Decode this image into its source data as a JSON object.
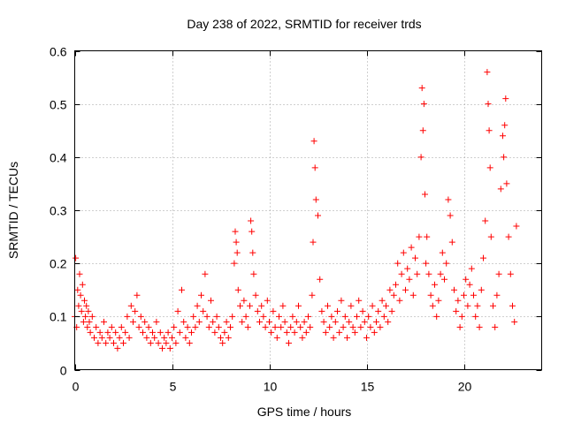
{
  "chart_data": {
    "type": "scatter",
    "title": "Day 238 of 2022, SRMTID for receiver trds",
    "xlabel": "GPS time / hours",
    "ylabel": "SRMTID / TECUs",
    "xlim": [
      0,
      24
    ],
    "ylim": [
      0,
      0.6
    ],
    "xticks": [
      0,
      5,
      10,
      15,
      20
    ],
    "xtick_labels": [
      "0",
      "5",
      "10",
      "15",
      "20"
    ],
    "yticks": [
      0,
      0.1,
      0.2,
      0.3,
      0.4,
      0.5,
      0.6
    ],
    "ytick_labels": [
      "0",
      "0.1",
      "0.2",
      "0.3",
      "0.4",
      "0.5",
      "0.6"
    ],
    "grid": true,
    "marker": "+",
    "color": "#ff0000",
    "series": [
      {
        "name": "SRMTID",
        "x": [
          0.0,
          0.05,
          0.1,
          0.15,
          0.2,
          0.25,
          0.3,
          0.35,
          0.4,
          0.45,
          0.5,
          0.55,
          0.6,
          0.65,
          0.7,
          0.75,
          0.8,
          0.9,
          1.0,
          1.1,
          1.2,
          1.3,
          1.4,
          1.5,
          1.6,
          1.7,
          1.8,
          1.9,
          2.0,
          2.1,
          2.2,
          2.3,
          2.4,
          2.5,
          2.6,
          2.7,
          2.8,
          2.9,
          3.0,
          3.1,
          3.2,
          3.3,
          3.4,
          3.5,
          3.6,
          3.7,
          3.8,
          3.9,
          4.0,
          4.1,
          4.2,
          4.3,
          4.4,
          4.5,
          4.6,
          4.7,
          4.8,
          4.9,
          5.0,
          5.1,
          5.2,
          5.3,
          5.4,
          5.5,
          5.6,
          5.7,
          5.8,
          5.9,
          6.0,
          6.1,
          6.2,
          6.3,
          6.4,
          6.5,
          6.6,
          6.7,
          6.8,
          6.9,
          7.0,
          7.1,
          7.2,
          7.3,
          7.4,
          7.5,
          7.6,
          7.7,
          7.8,
          7.9,
          8.0,
          8.1,
          8.2,
          8.25,
          8.3,
          8.35,
          8.4,
          8.5,
          8.6,
          8.7,
          8.8,
          8.9,
          9.0,
          9.05,
          9.1,
          9.15,
          9.2,
          9.3,
          9.4,
          9.5,
          9.6,
          9.7,
          9.8,
          9.9,
          10.0,
          10.1,
          10.2,
          10.3,
          10.4,
          10.5,
          10.6,
          10.7,
          10.8,
          10.9,
          11.0,
          11.1,
          11.2,
          11.3,
          11.4,
          11.5,
          11.6,
          11.7,
          11.8,
          11.9,
          12.0,
          12.1,
          12.2,
          12.25,
          12.3,
          12.35,
          12.4,
          12.5,
          12.6,
          12.7,
          12.8,
          12.9,
          13.0,
          13.1,
          13.2,
          13.3,
          13.4,
          13.5,
          13.6,
          13.7,
          13.8,
          13.9,
          14.0,
          14.1,
          14.2,
          14.3,
          14.4,
          14.5,
          14.6,
          14.7,
          14.8,
          14.9,
          15.0,
          15.1,
          15.2,
          15.3,
          15.4,
          15.5,
          15.6,
          15.7,
          15.8,
          15.9,
          16.0,
          16.1,
          16.2,
          16.3,
          16.4,
          16.5,
          16.6,
          16.7,
          16.8,
          16.9,
          17.0,
          17.1,
          17.2,
          17.3,
          17.4,
          17.5,
          17.6,
          17.7,
          17.8,
          17.85,
          17.9,
          17.95,
          18.0,
          18.05,
          18.1,
          18.2,
          18.3,
          18.4,
          18.5,
          18.6,
          18.7,
          18.8,
          18.9,
          19.0,
          19.1,
          19.2,
          19.3,
          19.4,
          19.5,
          19.6,
          19.7,
          19.8,
          19.9,
          20.0,
          20.1,
          20.2,
          20.3,
          20.4,
          20.5,
          20.6,
          20.7,
          20.8,
          20.9,
          21.0,
          21.1,
          21.2,
          21.25,
          21.3,
          21.35,
          21.4,
          21.5,
          21.6,
          21.7,
          21.8,
          21.9,
          22.0,
          22.05,
          22.1,
          22.15,
          22.2,
          22.3,
          22.4,
          22.5,
          22.6,
          22.7
        ],
        "y": [
          0.1,
          0.21,
          0.08,
          0.15,
          0.12,
          0.18,
          0.14,
          0.11,
          0.16,
          0.09,
          0.13,
          0.1,
          0.12,
          0.08,
          0.11,
          0.09,
          0.07,
          0.1,
          0.06,
          0.08,
          0.05,
          0.07,
          0.06,
          0.09,
          0.05,
          0.07,
          0.06,
          0.08,
          0.05,
          0.07,
          0.04,
          0.06,
          0.08,
          0.05,
          0.07,
          0.1,
          0.06,
          0.12,
          0.09,
          0.11,
          0.14,
          0.08,
          0.1,
          0.07,
          0.09,
          0.06,
          0.08,
          0.05,
          0.07,
          0.06,
          0.09,
          0.05,
          0.07,
          0.04,
          0.06,
          0.05,
          0.07,
          0.04,
          0.06,
          0.08,
          0.05,
          0.11,
          0.07,
          0.15,
          0.09,
          0.06,
          0.08,
          0.05,
          0.07,
          0.1,
          0.08,
          0.12,
          0.09,
          0.14,
          0.11,
          0.18,
          0.1,
          0.08,
          0.13,
          0.09,
          0.07,
          0.1,
          0.08,
          0.06,
          0.05,
          0.07,
          0.09,
          0.06,
          0.08,
          0.1,
          0.2,
          0.26,
          0.24,
          0.22,
          0.15,
          0.12,
          0.09,
          0.13,
          0.1,
          0.08,
          0.12,
          0.28,
          0.26,
          0.22,
          0.18,
          0.14,
          0.11,
          0.09,
          0.12,
          0.1,
          0.08,
          0.13,
          0.09,
          0.07,
          0.11,
          0.08,
          0.06,
          0.1,
          0.08,
          0.12,
          0.09,
          0.07,
          0.05,
          0.08,
          0.1,
          0.07,
          0.09,
          0.12,
          0.08,
          0.06,
          0.09,
          0.07,
          0.1,
          0.08,
          0.14,
          0.24,
          0.43,
          0.38,
          0.32,
          0.29,
          0.17,
          0.11,
          0.09,
          0.07,
          0.12,
          0.08,
          0.1,
          0.06,
          0.09,
          0.11,
          0.07,
          0.13,
          0.08,
          0.1,
          0.06,
          0.09,
          0.12,
          0.08,
          0.07,
          0.1,
          0.13,
          0.08,
          0.11,
          0.09,
          0.06,
          0.1,
          0.08,
          0.12,
          0.07,
          0.09,
          0.11,
          0.08,
          0.13,
          0.1,
          0.12,
          0.09,
          0.15,
          0.11,
          0.14,
          0.16,
          0.2,
          0.13,
          0.18,
          0.22,
          0.15,
          0.19,
          0.17,
          0.23,
          0.14,
          0.21,
          0.18,
          0.25,
          0.4,
          0.53,
          0.45,
          0.5,
          0.33,
          0.2,
          0.25,
          0.18,
          0.14,
          0.12,
          0.16,
          0.1,
          0.13,
          0.18,
          0.22,
          0.17,
          0.2,
          0.32,
          0.29,
          0.24,
          0.15,
          0.11,
          0.13,
          0.08,
          0.1,
          0.14,
          0.17,
          0.12,
          0.16,
          0.19,
          0.14,
          0.1,
          0.12,
          0.08,
          0.15,
          0.21,
          0.28,
          0.56,
          0.5,
          0.45,
          0.38,
          0.25,
          0.12,
          0.08,
          0.14,
          0.18,
          0.34,
          0.44,
          0.4,
          0.46,
          0.51,
          0.35,
          0.25,
          0.18,
          0.12,
          0.09,
          0.27
        ]
      }
    ]
  }
}
